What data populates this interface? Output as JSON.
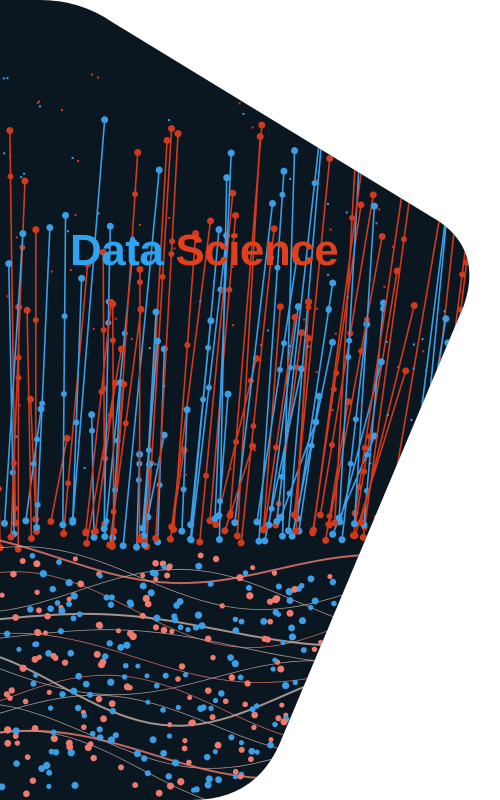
{
  "headline": {
    "first": "Data",
    "second": "Science"
  }
}
